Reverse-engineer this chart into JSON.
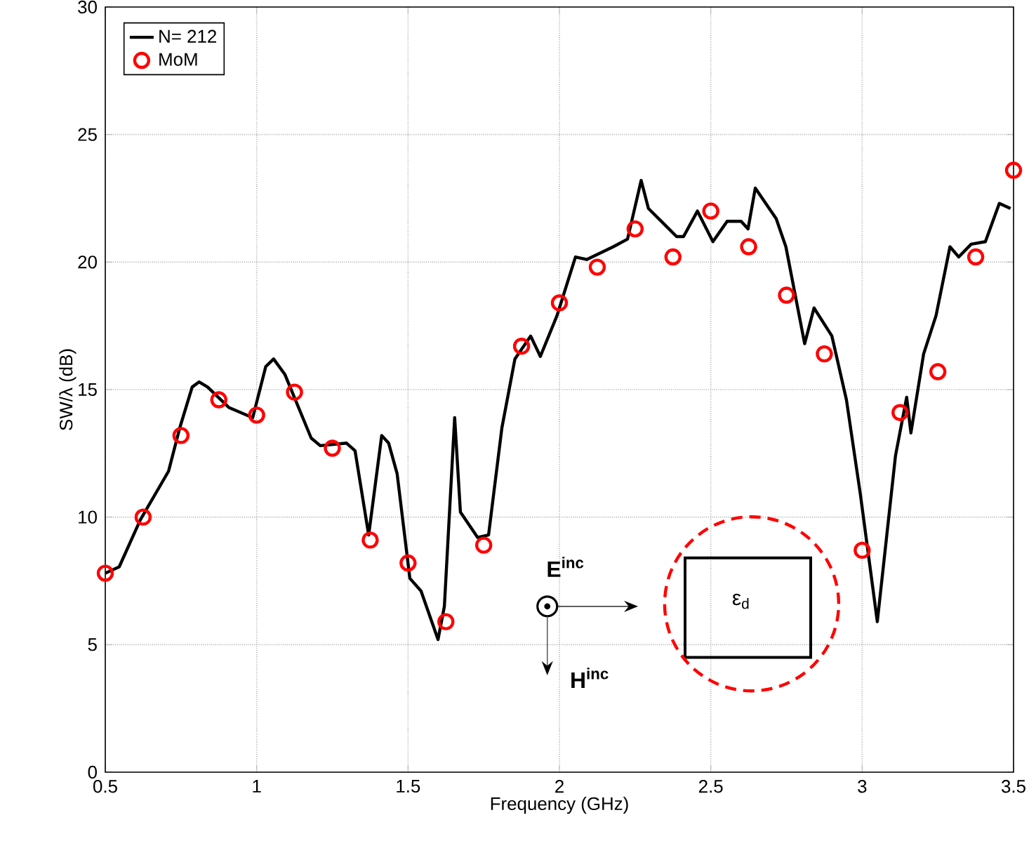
{
  "chart_data": {
    "type": "line",
    "xlabel": "Frequency (GHz)",
    "ylabel": "SW/λ (dB)",
    "xlim": [
      0.5,
      3.5
    ],
    "ylim": [
      0,
      30
    ],
    "xticks": [
      0.5,
      1,
      1.5,
      2,
      2.5,
      3,
      3.5
    ],
    "yticks": [
      0,
      5,
      10,
      15,
      20,
      25,
      30
    ],
    "grid": true,
    "legend": "top left",
    "annotations": [
      "E$^{inc}$",
      "H$^{inc}$",
      "ε$_{d}$"
    ],
    "series": [
      {
        "name": "N= 212",
        "color": "#000000",
        "marker": "none",
        "line_style": "solid",
        "x": [
          0.5,
          0.546,
          0.616,
          0.709,
          0.746,
          0.787,
          0.81,
          0.838,
          0.908,
          0.987,
          1.03,
          1.056,
          1.093,
          1.18,
          1.21,
          1.297,
          1.325,
          1.37,
          1.413,
          1.436,
          1.464,
          1.506,
          1.543,
          1.599,
          1.62,
          1.654,
          1.673,
          1.73,
          1.766,
          1.81,
          1.853,
          1.905,
          1.937,
          1.992,
          2.053,
          2.09,
          2.178,
          2.225,
          2.27,
          2.294,
          2.345,
          2.387,
          2.41,
          2.456,
          2.507,
          2.554,
          2.6,
          2.623,
          2.647,
          2.716,
          2.748,
          2.81,
          2.841,
          2.9,
          2.948,
          2.994,
          3.05,
          3.11,
          3.147,
          3.161,
          3.203,
          3.244,
          3.29,
          3.319,
          3.36,
          3.407,
          3.453,
          3.49
        ],
        "values": [
          7.8,
          8.05,
          9.9,
          11.8,
          13.5,
          15.1,
          15.3,
          15.1,
          14.3,
          13.9,
          15.9,
          16.2,
          15.6,
          13.1,
          12.8,
          12.9,
          12.6,
          9.3,
          13.2,
          12.9,
          11.7,
          7.6,
          7.1,
          5.2,
          6.5,
          13.9,
          10.2,
          9.2,
          9.3,
          13.5,
          16.2,
          17.1,
          16.3,
          17.9,
          20.2,
          20.1,
          20.6,
          20.9,
          23.2,
          22.1,
          21.5,
          21.0,
          21.0,
          22.0,
          20.8,
          21.6,
          21.6,
          21.3,
          22.9,
          21.7,
          20.6,
          16.8,
          18.2,
          17.1,
          14.6,
          10.9,
          5.9,
          12.4,
          14.7,
          13.3,
          16.4,
          17.9,
          20.6,
          20.2,
          20.7,
          20.8,
          22.3,
          22.1
        ]
      },
      {
        "name": "MoM",
        "type": "scatter",
        "color": "#ff0000",
        "marker": "circle",
        "x": [
          0.5,
          0.625,
          0.75,
          0.875,
          1.0,
          1.125,
          1.25,
          1.375,
          1.5,
          1.625,
          1.75,
          1.875,
          2.0,
          2.125,
          2.25,
          2.375,
          2.5,
          2.625,
          2.75,
          2.875,
          3.0,
          3.125,
          3.25,
          3.375,
          3.5
        ],
        "values": [
          7.8,
          10.0,
          13.2,
          14.6,
          14.0,
          14.9,
          12.7,
          9.1,
          8.2,
          5.9,
          8.9,
          16.7,
          18.4,
          19.8,
          21.3,
          20.2,
          22.0,
          20.6,
          18.7,
          16.4,
          8.7,
          14.1,
          15.7,
          20.2,
          23.6
        ]
      }
    ]
  }
}
